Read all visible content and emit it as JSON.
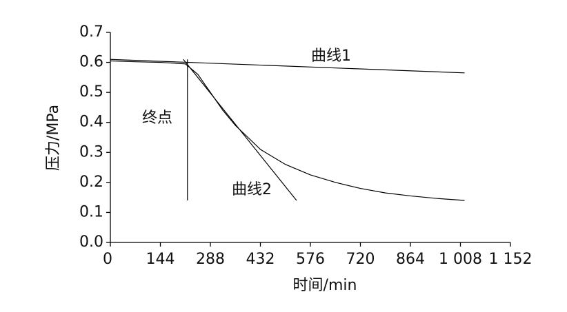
{
  "chart_data": {
    "type": "line",
    "xlabel": "时间/min",
    "ylabel": "压力/MPa",
    "xlim": [
      0,
      1152
    ],
    "ylim": [
      0,
      0.7
    ],
    "xticks": [
      0,
      144,
      288,
      432,
      576,
      720,
      864,
      {
        "value": 1008,
        "label": "1 008"
      },
      {
        "value": 1152,
        "label": "1 152"
      }
    ],
    "yticks": [
      {
        "value": 0,
        "label": "0.0"
      },
      0.1,
      0.2,
      0.3,
      0.4,
      0.5,
      0.6,
      0.7
    ],
    "series": [
      {
        "color": "#000000",
        "x": [
          0,
          72,
          144,
          216,
          252,
          288,
          324,
          360,
          432,
          504,
          576,
          648,
          720,
          792,
          864,
          936,
          1020
        ],
        "values": [
          0.605,
          0.602,
          0.6,
          0.595,
          0.56,
          0.5,
          0.44,
          0.39,
          0.31,
          0.26,
          0.225,
          0.2,
          0.18,
          0.165,
          0.155,
          0.147,
          0.14
        ]
      },
      {
        "name": "曲线1",
        "color": "#000000",
        "x": [
          0,
          1020
        ],
        "values": [
          0.61,
          0.565
        ]
      },
      {
        "name": "曲线2",
        "color": "#000000",
        "x": [
          210,
          536
        ],
        "values": [
          0.61,
          0.14
        ]
      },
      {
        "name": "终点",
        "color": "#000000",
        "x": [
          222,
          222
        ],
        "values": [
          0.61,
          0.14
        ]
      }
    ]
  }
}
